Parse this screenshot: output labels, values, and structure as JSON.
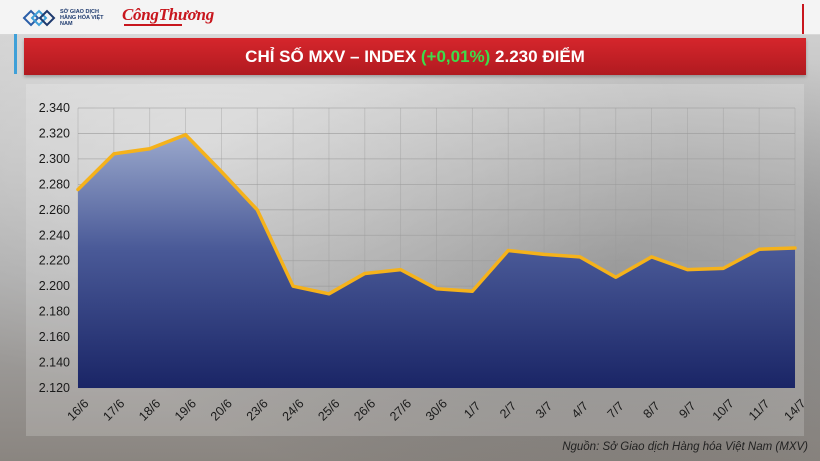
{
  "header": {
    "mxv_logo_text": "SỞ GIAO DỊCH HÀNG HÓA VIỆT NAM",
    "ct_logo_text": "CôngThương"
  },
  "title": {
    "prefix": "CHỈ SỐ MXV – INDEX ",
    "change": "(+0,01%)",
    "suffix": " 2.230 ĐIỂM"
  },
  "source": "Nguồn: Sở Giao dịch Hàng hóa Việt Nam (MXV)",
  "colors": {
    "title_bar": "#c8202a",
    "change_text": "#3ddc4a",
    "line": "#f5b21b",
    "area_top": "#9aa8cc",
    "area_bottom": "#1a2566"
  },
  "chart_data": {
    "type": "area",
    "title": "CHỈ SỐ MXV – INDEX (+0,01%) 2.230 ĐIỂM",
    "categories": [
      "16/6",
      "17/6",
      "18/6",
      "19/6",
      "20/6",
      "23/6",
      "24/6",
      "25/6",
      "26/6",
      "27/6",
      "30/6",
      "1/7",
      "2/7",
      "3/7",
      "4/7",
      "7/7",
      "8/7",
      "9/7",
      "10/7",
      "11/7",
      "14/7"
    ],
    "series": [
      {
        "values": [
          2276,
          2304,
          2308,
          2319,
          2290,
          2260,
          2200,
          2194,
          2210,
          2213,
          2198,
          2196,
          2228,
          2225,
          2223,
          2207,
          2223,
          2213,
          2214,
          2229,
          2230
        ]
      }
    ],
    "ylim": [
      2120,
      2340
    ],
    "yticks": [
      2120,
      2140,
      2160,
      2180,
      2200,
      2220,
      2240,
      2260,
      2280,
      2300,
      2320,
      2340
    ],
    "ytick_labels": [
      "2.120",
      "2.140",
      "2.160",
      "2.180",
      "2.200",
      "2.220",
      "2.240",
      "2.260",
      "2.280",
      "2.300",
      "2.320",
      "2.340"
    ],
    "grid": true,
    "legend": "none"
  }
}
